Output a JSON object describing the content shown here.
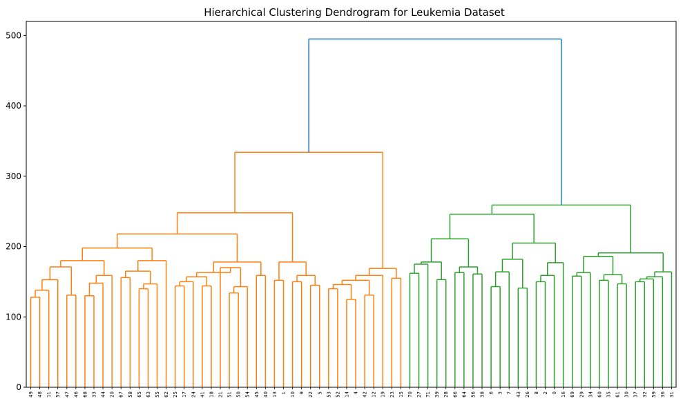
{
  "chart_data": {
    "type": "dendrogram",
    "title": "Hierarchical Clustering Dendrogram for Leukemia Dataset",
    "xlabel": "",
    "ylabel": "",
    "ylim": [
      0,
      520
    ],
    "yticks": [
      0,
      100,
      200,
      300,
      400,
      500
    ],
    "grid": false,
    "colors": {
      "cluster_a": "#ff7f0e",
      "cluster_b": "#2ca02c",
      "root": "#1f77b4",
      "axis": "#000000"
    },
    "leaves": [
      "49",
      "48",
      "11",
      "57",
      "47",
      "46",
      "68",
      "33",
      "44",
      "20",
      "67",
      "58",
      "65",
      "63",
      "55",
      "62",
      "25",
      "17",
      "24",
      "41",
      "18",
      "21",
      "51",
      "50",
      "54",
      "45",
      "40",
      "13",
      "1",
      "10",
      "9",
      "22",
      "5",
      "53",
      "52",
      "14",
      "4",
      "42",
      "12",
      "19",
      "23",
      "15",
      "70",
      "27",
      "71",
      "39",
      "28",
      "66",
      "64",
      "56",
      "38",
      "6",
      "3",
      "7",
      "43",
      "26",
      "8",
      "2",
      "0",
      "16",
      "69",
      "29",
      "34",
      "60",
      "35",
      "61",
      "30",
      "37",
      "32",
      "59",
      "36",
      "31"
    ],
    "tree": [
      {
        "c": "root",
        "h": 495,
        "ch": [
          {
            "c": "cluster_a",
            "h": 334,
            "ch": [
              {
                "h": 248,
                "ch": [
                  {
                    "h": 218,
                    "ch": [
                      {
                        "h": 198,
                        "ch": [
                          {
                            "h": 180,
                            "ch": [
                              {
                                "h": 171,
                                "ch": [
                                  {
                                    "h": 153,
                                    "ch": [
                                      {
                                        "h": 138,
                                        "ch": [
                                          {
                                            "h": 128,
                                            "ch": [
                                              "49",
                                              "48"
                                            ]
                                          },
                                          "11"
                                        ]
                                      },
                                      "57"
                                    ]
                                  },
                                  {
                                    "h": 131,
                                    "ch": [
                                      "47",
                                      "46"
                                    ]
                                  }
                                ]
                              },
                              {
                                "h": 159,
                                "ch": [
                                  {
                                    "h": 148,
                                    "ch": [
                                      {
                                        "h": 130,
                                        "ch": [
                                          "68",
                                          "33"
                                        ]
                                      },
                                      "44"
                                    ]
                                  },
                                  "20"
                                ]
                              }
                            ]
                          },
                          {
                            "h": 180,
                            "ch": [
                              {
                                "h": 165,
                                "ch": [
                                  {
                                    "h": 156,
                                    "ch": [
                                      "67",
                                      "58"
                                    ]
                                  },
                                  {
                                    "h": 147,
                                    "ch": [
                                      {
                                        "h": 140,
                                        "ch": [
                                          "65",
                                          "63"
                                        ]
                                      },
                                      "55"
                                    ]
                                  }
                                ]
                              },
                              "62"
                            ]
                          }
                        ]
                      },
                      {
                        "h": 178,
                        "ch": [
                          {
                            "h": 163,
                            "ch": [
                              {
                                "h": 157,
                                "ch": [
                                  {
                                    "h": 150,
                                    "ch": [
                                      {
                                        "h": 144,
                                        "ch": [
                                          "25",
                                          "17"
                                        ]
                                      },
                                      "24"
                                    ]
                                  },
                                  {
                                    "h": 144,
                                    "ch": [
                                      "41",
                                      "18"
                                    ]
                                  }
                                ]
                              },
                              {
                                "h": 170,
                                "ch": [
                                  "21",
                                  {
                                    "h": 143,
                                    "ch": [
                                      {
                                        "h": 134,
                                        "ch": [
                                          "51",
                                          "50"
                                        ]
                                      },
                                      "54"
                                    ]
                                  }
                                ]
                              }
                            ]
                          },
                          {
                            "h": 159,
                            "ch": [
                              "45",
                              "40"
                            ]
                          }
                        ]
                      }
                    ]
                  },
                  {
                    "h": 178,
                    "ch": [
                      {
                        "h": 152,
                        "ch": [
                          "13",
                          "1"
                        ]
                      },
                      {
                        "h": 159,
                        "ch": [
                          {
                            "h": 150,
                            "ch": [
                              "10",
                              "9"
                            ]
                          },
                          {
                            "h": 145,
                            "ch": [
                              "22",
                              "5"
                            ]
                          }
                        ]
                      }
                    ]
                  }
                ]
              },
              {
                "h": 169,
                "ch": [
                  {
                    "h": 159,
                    "ch": [
                      {
                        "h": 152,
                        "ch": [
                          {
                            "h": 146,
                            "ch": [
                              {
                                "h": 140,
                                "ch": [
                                  "53",
                                  "52"
                                ]
                              },
                              {
                                "h": 125,
                                "ch": [
                                  "14",
                                  "4"
                                ]
                              }
                            ]
                          },
                          {
                            "h": 131,
                            "ch": [
                              "42",
                              "12"
                            ]
                          }
                        ]
                      },
                      "19"
                    ]
                  },
                  {
                    "h": 155,
                    "ch": [
                      "23",
                      "15"
                    ]
                  }
                ]
              }
            ]
          },
          {
            "c": "cluster_b",
            "h": 259,
            "ch": [
              {
                "h": 246,
                "ch": [
                  {
                    "h": 211,
                    "ch": [
                      {
                        "h": 178,
                        "ch": [
                          {
                            "h": 175,
                            "ch": [
                              {
                                "h": 162,
                                "ch": [
                                  "70",
                                  "27"
                                ]
                              },
                              "71"
                            ]
                          },
                          {
                            "h": 153,
                            "ch": [
                              "39",
                              "28"
                            ]
                          }
                        ]
                      },
                      {
                        "h": 171,
                        "ch": [
                          {
                            "h": 163,
                            "ch": [
                              "66",
                              "64"
                            ]
                          },
                          {
                            "h": 161,
                            "ch": [
                              "56",
                              "38"
                            ]
                          }
                        ]
                      }
                    ]
                  },
                  {
                    "h": 205,
                    "ch": [
                      {
                        "h": 182,
                        "ch": [
                          {
                            "h": 164,
                            "ch": [
                              {
                                "h": 143,
                                "ch": [
                                  "6",
                                  "3"
                                ]
                              },
                              "7"
                            ]
                          },
                          {
                            "h": 141,
                            "ch": [
                              "43",
                              "26"
                            ]
                          }
                        ]
                      },
                      {
                        "h": 177,
                        "ch": [
                          {
                            "h": 159,
                            "ch": [
                              {
                                "h": 150,
                                "ch": [
                                  "8",
                                  "2"
                                ]
                              },
                              "0"
                            ]
                          },
                          "16"
                        ]
                      }
                    ]
                  }
                ]
              },
              {
                "h": 191,
                "ch": [
                  {
                    "h": 186,
                    "ch": [
                      {
                        "h": 163,
                        "ch": [
                          {
                            "h": 158,
                            "ch": [
                              "69",
                              "29"
                            ]
                          },
                          "34"
                        ]
                      },
                      {
                        "h": 160,
                        "ch": [
                          {
                            "h": 152,
                            "ch": [
                              "60",
                              "35"
                            ]
                          },
                          {
                            "h": 147,
                            "ch": [
                              "61",
                              "30"
                            ]
                          }
                        ]
                      }
                    ]
                  },
                  {
                    "h": 164,
                    "ch": [
                      {
                        "h": 157,
                        "ch": [
                          {
                            "h": 154,
                            "ch": [
                              {
                                "h": 150,
                                "ch": [
                                  "37",
                                  "32"
                                ]
                              },
                              "59"
                            ]
                          },
                          "36"
                        ]
                      },
                      "31"
                    ]
                  }
                ]
              }
            ]
          }
        ]
      }
    ]
  }
}
